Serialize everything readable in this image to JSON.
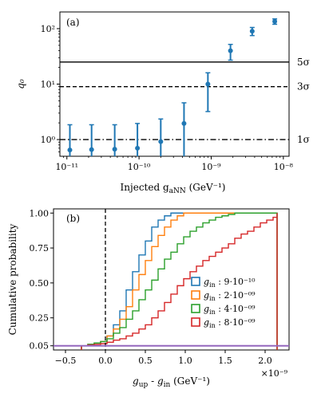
{
  "chart_data": [
    {
      "panel": "(a)",
      "type": "scatter",
      "xscale": "log",
      "yscale": "log",
      "ylabel": "q₀",
      "xlabel_main": "Injected g",
      "xlabel_sub": "aNN",
      "xlabel_unit": " (GeV⁻¹)",
      "xlim": [
        8e-12,
        1.2e-08
      ],
      "ylim": [
        0.5,
        200
      ],
      "xticks": [
        1e-11,
        1e-10,
        1e-09,
        1e-08
      ],
      "xtick_labels": [
        "10⁻¹¹",
        "10⁻¹⁰",
        "10⁻⁹",
        "10⁻⁸"
      ],
      "yticks": [
        1,
        10,
        100
      ],
      "ytick_labels": [
        "10⁰",
        "10¹",
        "10²"
      ],
      "color": "#1f77b4",
      "points": [
        {
          "x": 1.1e-11,
          "y": 0.65,
          "lo": 0.45,
          "hi": 1.85
        },
        {
          "x": 2.2e-11,
          "y": 0.66,
          "lo": 0.45,
          "hi": 1.85
        },
        {
          "x": 4.6e-11,
          "y": 0.67,
          "lo": 0.45,
          "hi": 1.85
        },
        {
          "x": 9.5e-11,
          "y": 0.7,
          "lo": 0.45,
          "hi": 1.95
        },
        {
          "x": 2e-10,
          "y": 0.92,
          "lo": 0.45,
          "hi": 2.35
        },
        {
          "x": 4.2e-10,
          "y": 1.95,
          "lo": 0.45,
          "hi": 4.6
        },
        {
          "x": 9e-10,
          "y": 10.0,
          "lo": 3.2,
          "hi": 16.0
        },
        {
          "x": 1.85e-09,
          "y": 40.0,
          "lo": 27.0,
          "hi": 52.0
        },
        {
          "x": 3.7e-09,
          "y": 90.0,
          "lo": 75.0,
          "hi": 105.0
        },
        {
          "x": 7.6e-09,
          "y": 135.0,
          "lo": 120.0,
          "hi": 150.0
        }
      ],
      "hlines": [
        {
          "y": 25,
          "label": "5σ",
          "style": "solid"
        },
        {
          "y": 9,
          "label": "3σ",
          "style": "dashed"
        },
        {
          "y": 1,
          "label": "1σ",
          "style": "dashdot"
        }
      ]
    },
    {
      "panel": "(b)",
      "type": "step",
      "xlabel": "g",
      "xlabel_unit": " (GeV⁻¹)",
      "ylabel": "Cumulative probability",
      "x_multiplier": "×10⁻⁹",
      "xlim": [
        -0.65,
        2.3
      ],
      "ylim": [
        0.02,
        1.03
      ],
      "xticks": [
        -0.5,
        0.0,
        0.5,
        1.0,
        1.5,
        2.0
      ],
      "xtick_labels": [
        "−0.5",
        "0.0",
        "0.5",
        "1.0",
        "1.5",
        "2.0"
      ],
      "yticks": [
        0.05,
        0.25,
        0.5,
        0.75,
        1.0
      ],
      "ytick_labels": [
        "0.05",
        "0.25",
        "0.50",
        "0.75",
        "1.00"
      ],
      "vline": {
        "x": 0.0,
        "style": "dashed",
        "color": "#000000"
      },
      "hline": {
        "y": 0.05,
        "color": "#9467bd"
      },
      "series": [
        {
          "name": "9·10⁻¹⁰",
          "color": "#1f77b4",
          "bin_width": 0.08,
          "x": [
            -0.3,
            -0.22,
            -0.14,
            -0.06,
            0.02,
            0.1,
            0.18,
            0.26,
            0.34,
            0.42,
            0.5,
            0.58,
            0.66,
            0.74,
            0.82,
            0.9,
            0.98,
            1.06,
            1.14,
            2.15
          ],
          "y": [
            0.05,
            0.06,
            0.07,
            0.08,
            0.12,
            0.2,
            0.3,
            0.45,
            0.58,
            0.7,
            0.8,
            0.9,
            0.95,
            0.98,
            1.0,
            1.0,
            1.0,
            1.0,
            1.0,
            1.0
          ]
        },
        {
          "name": "2·10⁻⁰⁹",
          "color": "#ff7f0e",
          "bin_width": 0.08,
          "x": [
            -0.3,
            -0.22,
            -0.14,
            -0.06,
            0.02,
            0.1,
            0.18,
            0.26,
            0.34,
            0.42,
            0.5,
            0.58,
            0.66,
            0.74,
            0.82,
            0.9,
            0.98,
            1.06,
            1.14,
            2.15
          ],
          "y": [
            0.05,
            0.06,
            0.07,
            0.08,
            0.12,
            0.17,
            0.24,
            0.33,
            0.45,
            0.56,
            0.66,
            0.76,
            0.84,
            0.9,
            0.95,
            0.98,
            1.0,
            1.0,
            1.0,
            1.0
          ]
        },
        {
          "name": "4·10⁻⁰⁹",
          "color": "#2ca02c",
          "bin_width": 0.08,
          "x": [
            -0.3,
            -0.22,
            -0.14,
            -0.06,
            0.02,
            0.1,
            0.18,
            0.26,
            0.34,
            0.42,
            0.5,
            0.58,
            0.66,
            0.74,
            0.82,
            0.9,
            0.98,
            1.06,
            1.14,
            1.22,
            1.3,
            1.38,
            1.46,
            1.54,
            1.62,
            1.7,
            2.15
          ],
          "y": [
            0.05,
            0.06,
            0.07,
            0.08,
            0.1,
            0.14,
            0.18,
            0.24,
            0.3,
            0.38,
            0.45,
            0.52,
            0.6,
            0.67,
            0.72,
            0.78,
            0.83,
            0.87,
            0.9,
            0.93,
            0.95,
            0.97,
            0.98,
            0.99,
            1.0,
            1.0,
            1.0
          ]
        },
        {
          "name": "8·10⁻⁰⁹",
          "color": "#d62728",
          "bin_width": 0.08,
          "x": [
            -0.3,
            -0.22,
            -0.14,
            -0.06,
            0.02,
            0.1,
            0.18,
            0.26,
            0.34,
            0.42,
            0.5,
            0.58,
            0.66,
            0.74,
            0.82,
            0.9,
            0.98,
            1.06,
            1.14,
            1.22,
            1.3,
            1.38,
            1.46,
            1.54,
            1.62,
            1.7,
            1.78,
            1.86,
            1.94,
            2.02,
            2.1,
            2.15
          ],
          "y": [
            0.05,
            0.055,
            0.06,
            0.065,
            0.075,
            0.09,
            0.1,
            0.12,
            0.14,
            0.17,
            0.2,
            0.25,
            0.3,
            0.36,
            0.42,
            0.48,
            0.53,
            0.58,
            0.62,
            0.66,
            0.69,
            0.72,
            0.75,
            0.78,
            0.82,
            0.85,
            0.87,
            0.9,
            0.93,
            0.95,
            0.97,
            1.0
          ]
        }
      ],
      "legend_placement": "lower-right",
      "legend_prefix": "g",
      "legend_sub": "in",
      "legend_sep": " : "
    }
  ]
}
